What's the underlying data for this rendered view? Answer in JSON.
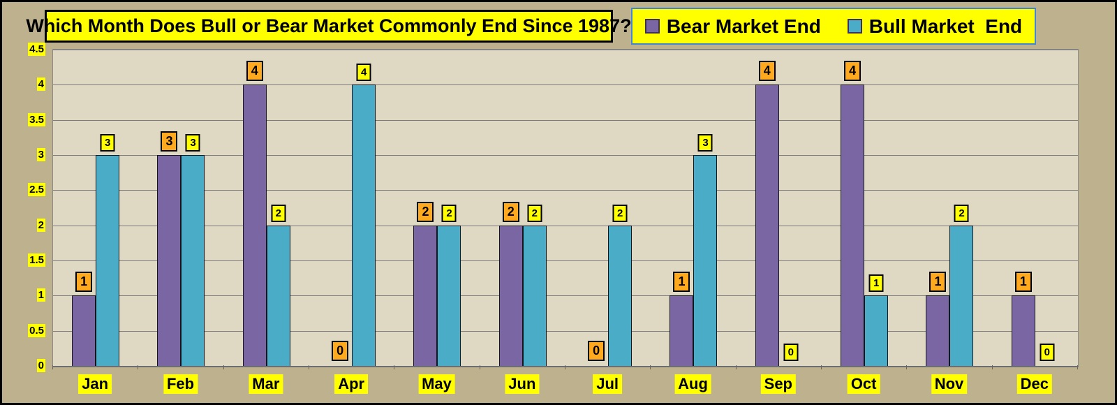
{
  "page": {
    "background": "#BDB18E",
    "border_color": "#000000"
  },
  "chart_data": {
    "type": "bar",
    "title": "Which Month Does Bull or Bear Market Commonly End Since 1987?",
    "categories": [
      "Jan",
      "Feb",
      "Mar",
      "Apr",
      "May",
      "Jun",
      "Jul",
      "Aug",
      "Sep",
      "Oct",
      "Nov",
      "Dec"
    ],
    "series": [
      {
        "name": "Bear Market End",
        "color": "#7B66A4",
        "label_bg": "#FFA91E",
        "values": [
          1,
          3,
          4,
          0,
          2,
          2,
          0,
          1,
          4,
          4,
          1,
          1
        ]
      },
      {
        "name": "Bull Market  End",
        "color": "#4AACC6",
        "label_bg": "#FFFF00",
        "values": [
          3,
          3,
          2,
          4,
          2,
          2,
          2,
          3,
          0,
          1,
          2,
          0
        ]
      }
    ],
    "ylim": [
      0,
      4.5
    ],
    "yticks": [
      0,
      0.5,
      1,
      1.5,
      2,
      2.5,
      3,
      3.5,
      4,
      4.5
    ],
    "grid": true,
    "legend_position": "top-right",
    "plot_bg": "#DFD9C3",
    "grid_color": "#7B7B7D",
    "title_bg": "#FFFF00",
    "legend_bg": "#FFFF00",
    "legend_border": "#4285D2",
    "axis_label_bg": "#FFFF00"
  }
}
